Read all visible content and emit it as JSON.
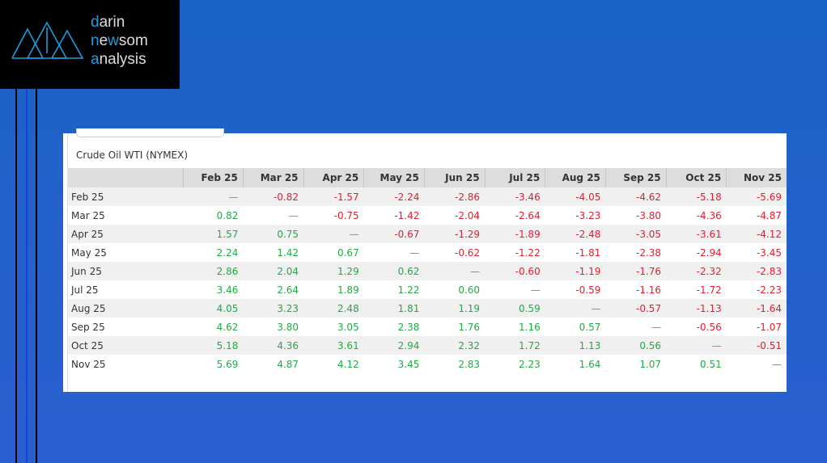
{
  "logo": {
    "line1": "darin",
    "line2": "newsom",
    "line3": "analysis"
  },
  "colors": {
    "positive": "#22aa44",
    "negative": "#e02030",
    "logo_accent": "#1e9be0"
  },
  "table": {
    "title": "Crude Oil WTI (NYMEX)",
    "columns": [
      "Feb 25",
      "Mar 25",
      "Apr 25",
      "May 25",
      "Jun 25",
      "Jul 25",
      "Aug 25",
      "Sep 25",
      "Oct 25",
      "Nov 25"
    ],
    "rows": [
      {
        "label": "Feb 25",
        "values": [
          "—",
          "-0.82",
          "-1.57",
          "-2.24",
          "-2.86",
          "-3.46",
          "-4.05",
          "-4.62",
          "-5.18",
          "-5.69"
        ]
      },
      {
        "label": "Mar 25",
        "values": [
          "0.82",
          "—",
          "-0.75",
          "-1.42",
          "-2.04",
          "-2.64",
          "-3.23",
          "-3.80",
          "-4.36",
          "-4.87"
        ]
      },
      {
        "label": "Apr 25",
        "values": [
          "1.57",
          "0.75",
          "—",
          "-0.67",
          "-1.29",
          "-1.89",
          "-2.48",
          "-3.05",
          "-3.61",
          "-4.12"
        ]
      },
      {
        "label": "May 25",
        "values": [
          "2.24",
          "1.42",
          "0.67",
          "—",
          "-0.62",
          "-1.22",
          "-1.81",
          "-2.38",
          "-2.94",
          "-3.45"
        ]
      },
      {
        "label": "Jun 25",
        "values": [
          "2.86",
          "2.04",
          "1.29",
          "0.62",
          "—",
          "-0.60",
          "-1.19",
          "-1.76",
          "-2.32",
          "-2.83"
        ]
      },
      {
        "label": "Jul 25",
        "values": [
          "3.46",
          "2.64",
          "1.89",
          "1.22",
          "0.60",
          "—",
          "-0.59",
          "-1.16",
          "-1.72",
          "-2.23"
        ]
      },
      {
        "label": "Aug 25",
        "values": [
          "4.05",
          "3.23",
          "2.48",
          "1.81",
          "1.19",
          "0.59",
          "—",
          "-0.57",
          "-1.13",
          "-1.64"
        ]
      },
      {
        "label": "Sep 25",
        "values": [
          "4.62",
          "3.80",
          "3.05",
          "2.38",
          "1.76",
          "1.16",
          "0.57",
          "—",
          "-0.56",
          "-1.07"
        ]
      },
      {
        "label": "Oct 25",
        "values": [
          "5.18",
          "4.36",
          "3.61",
          "2.94",
          "2.32",
          "1.72",
          "1.13",
          "0.56",
          "—",
          "-0.51"
        ]
      },
      {
        "label": "Nov 25",
        "values": [
          "5.69",
          "4.87",
          "4.12",
          "3.45",
          "2.83",
          "2.23",
          "1.64",
          "1.07",
          "0.51",
          "—"
        ]
      }
    ]
  }
}
